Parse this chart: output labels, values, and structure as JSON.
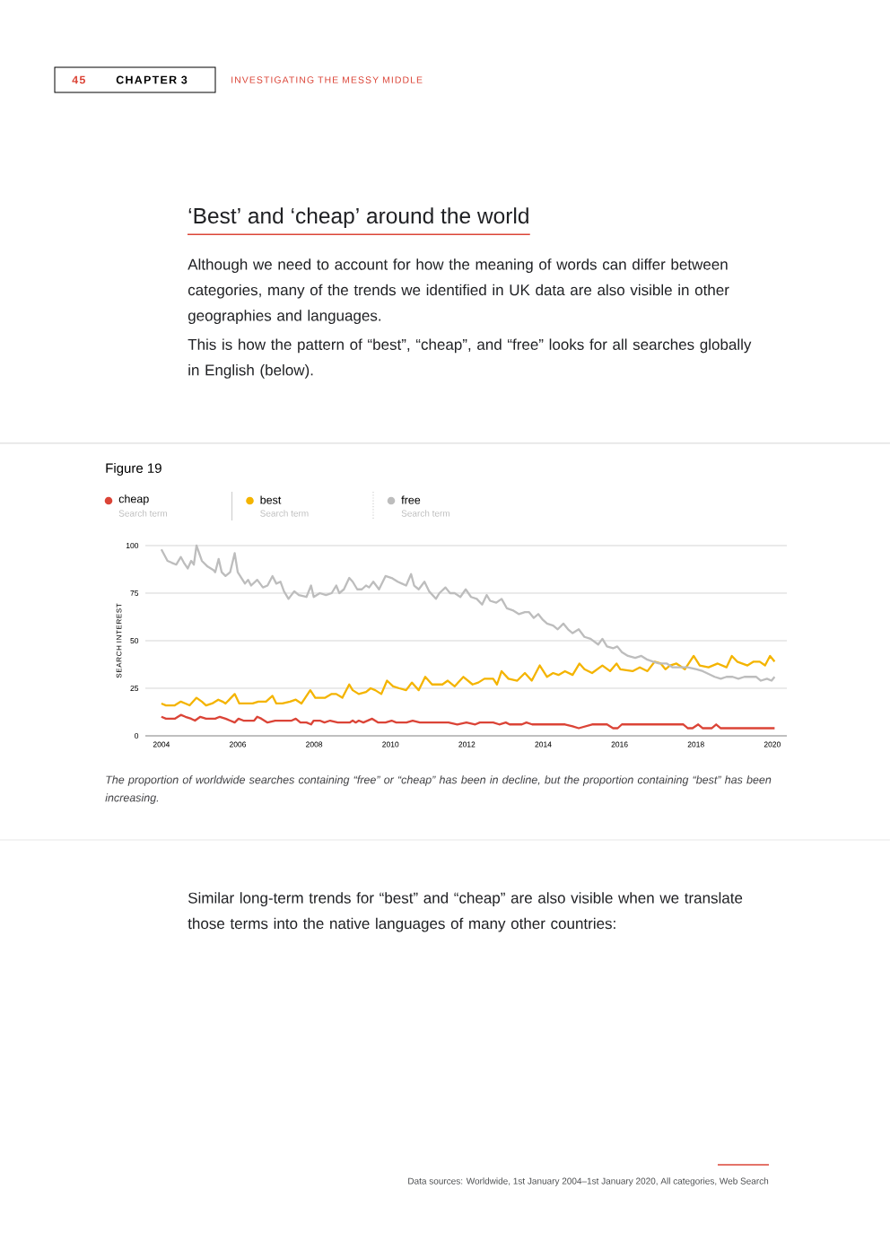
{
  "chart_data": {
    "type": "line",
    "title": "‘Best’ and ‘cheap’ around the world",
    "ylabel": "SEARCH INTEREST",
    "annotations": [
      "45",
      "CHAPTER 3",
      "INVESTIGATING THE MESSY MIDDLE",
      "Although we need to account for how the meaning of words can differ between categories, many of the trends we identified in UK data are also visible in other geographies and languages.",
      "This is how the pattern of “best”, “cheap”, and “free” looks for all searches globally in English (below).",
      "Figure 19",
      "Search term",
      "Search term",
      "Search term",
      "The proportion of worldwide searches containing “free” or “cheap” has been in decline, but the proportion containing “best” has been increasing.",
      "Similar long-term trends for “best” and “cheap” are also visible when we translate those terms into the native languages of many other countries:",
      "Data sources: Worldwide, 1st January 2004–1st January 2020, All categories, Web Search"
    ],
    "xlim": [
      2003.58,
      2020.38
    ],
    "ylim": [
      0,
      100
    ],
    "xticks": [
      2004,
      2006,
      2008,
      2010,
      2012,
      2014,
      2016,
      2018,
      2020
    ],
    "yticks": [
      0,
      25,
      50,
      75,
      100
    ],
    "grid": "y",
    "legend": "top left",
    "series": [
      {
        "name": "cheap",
        "color": "#db4437",
        "x": [
          2004.0,
          2004.12,
          2004.35,
          2004.51,
          2004.63,
          2004.78,
          2004.88,
          2005.02,
          2005.17,
          2005.41,
          2005.53,
          2005.68,
          2005.8,
          2005.92,
          2006.02,
          2006.15,
          2006.43,
          2006.51,
          2006.62,
          2006.78,
          2006.98,
          2007.41,
          2007.52,
          2007.64,
          2007.8,
          2007.92,
          2007.99,
          2008.15,
          2008.27,
          2008.42,
          2008.62,
          2008.93,
          2009.01,
          2009.09,
          2009.17,
          2009.29,
          2009.52,
          2009.68,
          2009.87,
          2010.03,
          2010.15,
          2010.42,
          2010.58,
          2010.77,
          2010.93,
          2011.17,
          2011.52,
          2011.75,
          2011.99,
          2012.22,
          2012.34,
          2012.69,
          2012.85,
          2013.02,
          2013.12,
          2013.44,
          2013.56,
          2013.71,
          2014.5,
          2014.57,
          2014.77,
          2014.93,
          2015.28,
          2015.67,
          2015.83,
          2015.95,
          2016.06,
          2017.67,
          2017.79,
          2017.91,
          2018.06,
          2018.18,
          2018.41,
          2018.53,
          2018.65,
          2020.06
        ],
        "values": [
          10,
          9,
          9,
          11,
          10,
          9,
          8,
          10,
          9,
          9,
          10,
          9,
          8,
          7,
          9,
          8,
          8,
          10,
          9,
          7,
          8,
          8,
          9,
          7,
          7,
          6,
          8,
          8,
          7,
          8,
          7,
          7,
          8,
          7,
          8,
          7,
          9,
          7,
          7,
          8,
          7,
          7,
          8,
          7,
          7,
          7,
          7,
          6,
          7,
          6,
          7,
          7,
          6,
          7,
          6,
          6,
          7,
          6,
          6,
          6,
          5,
          4,
          6,
          6,
          4,
          4,
          6,
          6,
          4,
          4,
          6,
          4,
          4,
          6,
          4,
          4
        ]
      },
      {
        "name": "best",
        "color": "#f4b400",
        "x": [
          2004.0,
          2004.12,
          2004.35,
          2004.51,
          2004.63,
          2004.74,
          2004.92,
          2005.06,
          2005.17,
          2005.33,
          2005.49,
          2005.6,
          2005.68,
          2005.92,
          2006.04,
          2006.23,
          2006.39,
          2006.54,
          2006.74,
          2006.91,
          2007.01,
          2007.17,
          2007.37,
          2007.52,
          2007.67,
          2007.9,
          2008.03,
          2008.19,
          2008.29,
          2008.46,
          2008.58,
          2008.74,
          2008.92,
          2009.01,
          2009.17,
          2009.36,
          2009.48,
          2009.6,
          2009.76,
          2009.91,
          2010.07,
          2010.23,
          2010.41,
          2010.56,
          2010.74,
          2010.91,
          2011.09,
          2011.36,
          2011.5,
          2011.68,
          2011.91,
          2012.15,
          2012.3,
          2012.46,
          2012.69,
          2012.79,
          2012.91,
          2013.09,
          2013.32,
          2013.52,
          2013.7,
          2013.91,
          2014.1,
          2014.26,
          2014.4,
          2014.57,
          2014.77,
          2014.95,
          2015.08,
          2015.28,
          2015.55,
          2015.75,
          2015.92,
          2016.02,
          2016.34,
          2016.53,
          2016.73,
          2016.92,
          2017.08,
          2017.2,
          2017.32,
          2017.49,
          2017.71,
          2017.94,
          2018.1,
          2018.33,
          2018.57,
          2018.8,
          2018.94,
          2019.08,
          2019.35,
          2019.51,
          2019.67,
          2019.81,
          2019.94,
          2020.06
        ],
        "values": [
          17,
          16,
          16,
          18,
          17,
          16,
          20,
          18,
          16,
          17,
          19,
          18,
          17,
          22,
          17,
          17,
          17,
          18,
          18,
          21,
          17,
          17,
          18,
          19,
          17,
          24,
          20,
          20,
          20,
          22,
          22,
          20,
          27,
          24,
          22,
          23,
          25,
          24,
          22,
          29,
          26,
          25,
          24,
          28,
          24,
          31,
          27,
          27,
          29,
          26,
          31,
          27,
          28,
          30,
          30,
          27,
          34,
          30,
          29,
          33,
          29,
          37,
          31,
          33,
          32,
          34,
          32,
          38,
          35,
          33,
          37,
          34,
          38,
          35,
          34,
          36,
          34,
          39,
          38,
          35,
          37,
          38,
          35,
          42,
          37,
          36,
          38,
          36,
          42,
          39,
          37,
          39,
          39,
          37,
          42,
          39
        ]
      },
      {
        "name": "free",
        "color": "#bdbdbd",
        "x": [
          2004.0,
          2004.16,
          2004.27,
          2004.39,
          2004.51,
          2004.59,
          2004.69,
          2004.78,
          2004.85,
          2004.92,
          2005.06,
          2005.21,
          2005.37,
          2005.41,
          2005.5,
          2005.58,
          2005.68,
          2005.8,
          2005.92,
          2006.0,
          2006.19,
          2006.27,
          2006.35,
          2006.51,
          2006.66,
          2006.78,
          2006.91,
          2007.01,
          2007.12,
          2007.21,
          2007.33,
          2007.48,
          2007.6,
          2007.8,
          2007.92,
          2007.99,
          2008.15,
          2008.31,
          2008.46,
          2008.58,
          2008.66,
          2008.78,
          2008.92,
          2009.01,
          2009.13,
          2009.25,
          2009.36,
          2009.44,
          2009.55,
          2009.7,
          2009.87,
          2010.03,
          2010.19,
          2010.3,
          2010.41,
          2010.54,
          2010.62,
          2010.74,
          2010.89,
          2011.01,
          2011.19,
          2011.28,
          2011.44,
          2011.56,
          2011.68,
          2011.83,
          2011.97,
          2012.11,
          2012.26,
          2012.4,
          2012.52,
          2012.61,
          2012.77,
          2012.91,
          2013.05,
          2013.2,
          2013.36,
          2013.52,
          2013.63,
          2013.75,
          2013.87,
          2013.99,
          2014.1,
          2014.26,
          2014.38,
          2014.53,
          2014.65,
          2014.77,
          2014.93,
          2015.08,
          2015.24,
          2015.44,
          2015.55,
          2015.67,
          2015.83,
          2015.94,
          2016.06,
          2016.22,
          2016.41,
          2016.57,
          2016.73,
          2016.88,
          2017.04,
          2017.24,
          2017.39,
          2017.55,
          2017.78,
          2018.02,
          2018.18,
          2018.49,
          2018.65,
          2018.8,
          2018.96,
          2019.11,
          2019.27,
          2019.43,
          2019.58,
          2019.7,
          2019.86,
          2019.98,
          2020.06
        ],
        "values": [
          98,
          92,
          91,
          90,
          94,
          91,
          88,
          92,
          90,
          100,
          92,
          89,
          87,
          86,
          93,
          86,
          84,
          86,
          96,
          86,
          80,
          82,
          79,
          82,
          78,
          79,
          84,
          80,
          81,
          76,
          72,
          76,
          74,
          73,
          79,
          73,
          75,
          74,
          75,
          79,
          75,
          77,
          83,
          81,
          77,
          77,
          79,
          78,
          81,
          77,
          84,
          83,
          81,
          80,
          79,
          85,
          79,
          77,
          81,
          76,
          72,
          75,
          78,
          75,
          75,
          73,
          77,
          73,
          72,
          69,
          74,
          71,
          70,
          72,
          67,
          66,
          64,
          65,
          65,
          62,
          64,
          61,
          59,
          58,
          56,
          59,
          56,
          54,
          56,
          52,
          51,
          48,
          51,
          47,
          46,
          47,
          44,
          42,
          41,
          42,
          40,
          39,
          38,
          38,
          36,
          36,
          36,
          35,
          34,
          31,
          30,
          31,
          31,
          30,
          31,
          31,
          31,
          29,
          30,
          29,
          31
        ]
      }
    ]
  }
}
